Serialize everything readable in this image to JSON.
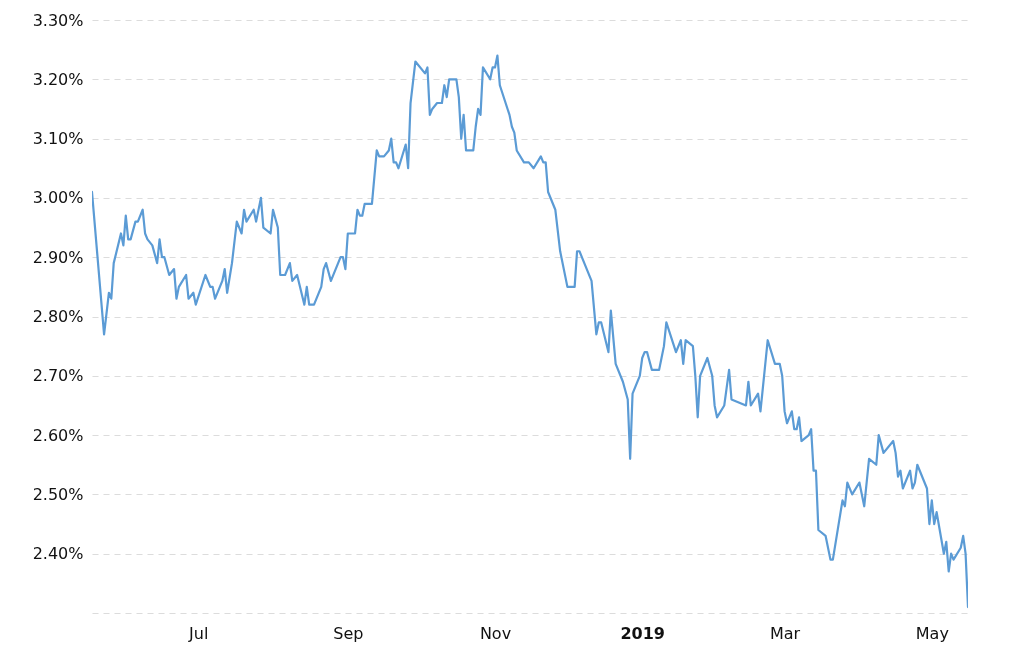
{
  "chart_data": {
    "type": "line",
    "x": [
      "2018-05-18",
      "2018-05-23",
      "2018-05-25",
      "2018-05-26",
      "2018-05-27",
      "2018-05-30",
      "2018-05-31",
      "2018-06-01",
      "2018-06-02",
      "2018-06-03",
      "2018-06-05",
      "2018-06-06",
      "2018-06-08",
      "2018-06-09",
      "2018-06-10",
      "2018-06-12",
      "2018-06-14",
      "2018-06-15",
      "2018-06-16",
      "2018-06-17",
      "2018-06-19",
      "2018-06-21",
      "2018-06-22",
      "2018-06-23",
      "2018-06-26",
      "2018-06-27",
      "2018-06-29",
      "2018-06-30",
      "2018-07-04",
      "2018-07-06",
      "2018-07-07",
      "2018-07-08",
      "2018-07-11",
      "2018-07-12",
      "2018-07-13",
      "2018-07-15",
      "2018-07-17",
      "2018-07-19",
      "2018-07-20",
      "2018-07-21",
      "2018-07-24",
      "2018-07-25",
      "2018-07-27",
      "2018-07-28",
      "2018-07-31",
      "2018-08-01",
      "2018-08-03",
      "2018-08-04",
      "2018-08-06",
      "2018-08-08",
      "2018-08-09",
      "2018-08-11",
      "2018-08-14",
      "2018-08-15",
      "2018-08-16",
      "2018-08-18",
      "2018-08-21",
      "2018-08-22",
      "2018-08-23",
      "2018-08-25",
      "2018-08-29",
      "2018-08-30",
      "2018-08-31",
      "2018-09-01",
      "2018-09-04",
      "2018-09-05",
      "2018-09-06",
      "2018-09-07",
      "2018-09-08",
      "2018-09-11",
      "2018-09-13",
      "2018-09-14",
      "2018-09-16",
      "2018-09-18",
      "2018-09-19",
      "2018-09-20",
      "2018-09-21",
      "2018-09-22",
      "2018-09-25",
      "2018-09-26",
      "2018-09-27",
      "2018-09-29",
      "2018-10-03",
      "2018-10-04",
      "2018-10-05",
      "2018-10-06",
      "2018-10-08",
      "2018-10-10",
      "2018-10-11",
      "2018-10-12",
      "2018-10-13",
      "2018-10-16",
      "2018-10-17",
      "2018-10-18",
      "2018-10-19",
      "2018-10-20",
      "2018-10-23",
      "2018-10-24",
      "2018-10-25",
      "2018-10-26",
      "2018-10-27",
      "2018-10-30",
      "2018-10-31",
      "2018-11-01",
      "2018-11-02",
      "2018-11-03",
      "2018-11-07",
      "2018-11-08",
      "2018-11-09",
      "2018-11-10",
      "2018-11-13",
      "2018-11-15",
      "2018-11-17",
      "2018-11-20",
      "2018-11-21",
      "2018-11-22",
      "2018-11-23",
      "2018-11-26",
      "2018-11-28",
      "2018-12-01",
      "2018-12-04",
      "2018-12-05",
      "2018-12-06",
      "2018-12-08",
      "2018-12-11",
      "2018-12-13",
      "2018-12-14",
      "2018-12-15",
      "2018-12-18",
      "2018-12-19",
      "2018-12-21",
      "2018-12-24",
      "2018-12-26",
      "2018-12-27",
      "2018-12-28",
      "2018-12-31",
      "2019-01-01",
      "2019-01-02",
      "2019-01-03",
      "2019-01-05",
      "2019-01-08",
      "2019-01-09",
      "2019-01-10",
      "2019-01-11",
      "2019-01-15",
      "2019-01-17",
      "2019-01-18",
      "2019-01-19",
      "2019-01-22",
      "2019-01-23",
      "2019-01-24",
      "2019-01-25",
      "2019-01-28",
      "2019-01-30",
      "2019-01-31",
      "2019-02-01",
      "2019-02-04",
      "2019-02-06",
      "2019-02-07",
      "2019-02-13",
      "2019-02-14",
      "2019-02-15",
      "2019-02-18",
      "2019-02-19",
      "2019-02-22",
      "2019-02-25",
      "2019-02-27",
      "2019-02-28",
      "2019-03-01",
      "2019-03-02",
      "2019-03-04",
      "2019-03-05",
      "2019-03-06",
      "2019-03-07",
      "2019-03-08",
      "2019-03-11",
      "2019-03-12",
      "2019-03-13",
      "2019-03-14",
      "2019-03-15",
      "2019-03-18",
      "2019-03-20",
      "2019-03-21",
      "2019-03-25",
      "2019-03-26",
      "2019-03-27",
      "2019-03-29",
      "2019-04-01",
      "2019-04-03",
      "2019-04-05",
      "2019-04-08",
      "2019-04-09",
      "2019-04-11",
      "2019-04-15",
      "2019-04-16",
      "2019-04-17",
      "2019-04-18",
      "2019-04-19",
      "2019-04-22",
      "2019-04-23",
      "2019-04-24",
      "2019-04-25",
      "2019-04-29",
      "2019-04-30",
      "2019-05-01",
      "2019-05-02",
      "2019-05-03",
      "2019-05-06",
      "2019-05-07",
      "2019-05-08",
      "2019-05-09",
      "2019-05-10",
      "2019-05-13",
      "2019-05-14",
      "2019-05-15",
      "2019-05-16"
    ],
    "series": [
      {
        "color": "#5b9bd5",
        "values": [
          3.01,
          2.77,
          2.84,
          2.83,
          2.89,
          2.94,
          2.92,
          2.97,
          2.93,
          2.93,
          2.96,
          2.96,
          2.98,
          2.94,
          2.93,
          2.92,
          2.89,
          2.93,
          2.9,
          2.9,
          2.87,
          2.88,
          2.83,
          2.85,
          2.87,
          2.83,
          2.84,
          2.82,
          2.87,
          2.85,
          2.85,
          2.83,
          2.86,
          2.88,
          2.84,
          2.89,
          2.96,
          2.94,
          2.98,
          2.96,
          2.98,
          2.96,
          3.0,
          2.95,
          2.94,
          2.98,
          2.95,
          2.87,
          2.87,
          2.89,
          2.86,
          2.87,
          2.82,
          2.85,
          2.82,
          2.82,
          2.85,
          2.88,
          2.89,
          2.86,
          2.9,
          2.9,
          2.88,
          2.94,
          2.94,
          2.98,
          2.97,
          2.97,
          2.99,
          2.99,
          3.08,
          3.07,
          3.07,
          3.08,
          3.1,
          3.06,
          3.06,
          3.05,
          3.09,
          3.05,
          3.16,
          3.23,
          3.21,
          3.22,
          3.14,
          3.15,
          3.16,
          3.16,
          3.19,
          3.17,
          3.2,
          3.2,
          3.17,
          3.1,
          3.14,
          3.08,
          3.08,
          3.12,
          3.15,
          3.14,
          3.22,
          3.2,
          3.22,
          3.22,
          3.24,
          3.19,
          3.14,
          3.12,
          3.11,
          3.08,
          3.06,
          3.06,
          3.05,
          3.07,
          3.06,
          3.06,
          3.01,
          2.98,
          2.91,
          2.85,
          2.85,
          2.91,
          2.91,
          2.89,
          2.86,
          2.77,
          2.79,
          2.79,
          2.74,
          2.81,
          2.72,
          2.69,
          2.66,
          2.56,
          2.67,
          2.7,
          2.73,
          2.74,
          2.74,
          2.71,
          2.71,
          2.73,
          2.75,
          2.79,
          2.74,
          2.76,
          2.72,
          2.76,
          2.75,
          2.7,
          2.63,
          2.7,
          2.73,
          2.7,
          2.65,
          2.63,
          2.65,
          2.71,
          2.66,
          2.65,
          2.69,
          2.65,
          2.67,
          2.64,
          2.76,
          2.72,
          2.72,
          2.7,
          2.64,
          2.62,
          2.64,
          2.61,
          2.61,
          2.63,
          2.59,
          2.6,
          2.61,
          2.54,
          2.54,
          2.44,
          2.43,
          2.39,
          2.39,
          2.49,
          2.48,
          2.52,
          2.5,
          2.52,
          2.48,
          2.56,
          2.55,
          2.6,
          2.57,
          2.59,
          2.57,
          2.53,
          2.54,
          2.51,
          2.54,
          2.51,
          2.52,
          2.55,
          2.51,
          2.45,
          2.49,
          2.45,
          2.47,
          2.4,
          2.42,
          2.37,
          2.4,
          2.39,
          2.41,
          2.43,
          2.4,
          2.31
        ]
      }
    ],
    "xlim": [
      "2018-05-18",
      "2019-05-16"
    ],
    "xticks": [
      {
        "value": "2018-07-01",
        "label": "Jul"
      },
      {
        "value": "2018-09-01",
        "label": "Sep"
      },
      {
        "value": "2018-11-01",
        "label": "Nov"
      },
      {
        "value": "2019-01-01",
        "label": "2019"
      },
      {
        "value": "2019-03-01",
        "label": "Mar"
      },
      {
        "value": "2019-05-01",
        "label": "May"
      }
    ],
    "ylim": [
      2.3,
      3.3
    ],
    "yticks": [
      {
        "value": 2.3,
        "label": null
      },
      {
        "value": 2.4,
        "label": "2.40%"
      },
      {
        "value": 2.5,
        "label": "2.50%"
      },
      {
        "value": 2.6,
        "label": "2.60%"
      },
      {
        "value": 2.7,
        "label": "2.70%"
      },
      {
        "value": 2.8,
        "label": "2.80%"
      },
      {
        "value": 2.9,
        "label": "2.90%"
      },
      {
        "value": 3.0,
        "label": "3.00%"
      },
      {
        "value": 3.1,
        "label": "3.10%"
      },
      {
        "value": 3.2,
        "label": "3.20%"
      },
      {
        "value": 3.3,
        "label": "3.30%"
      }
    ],
    "grid": "y"
  }
}
